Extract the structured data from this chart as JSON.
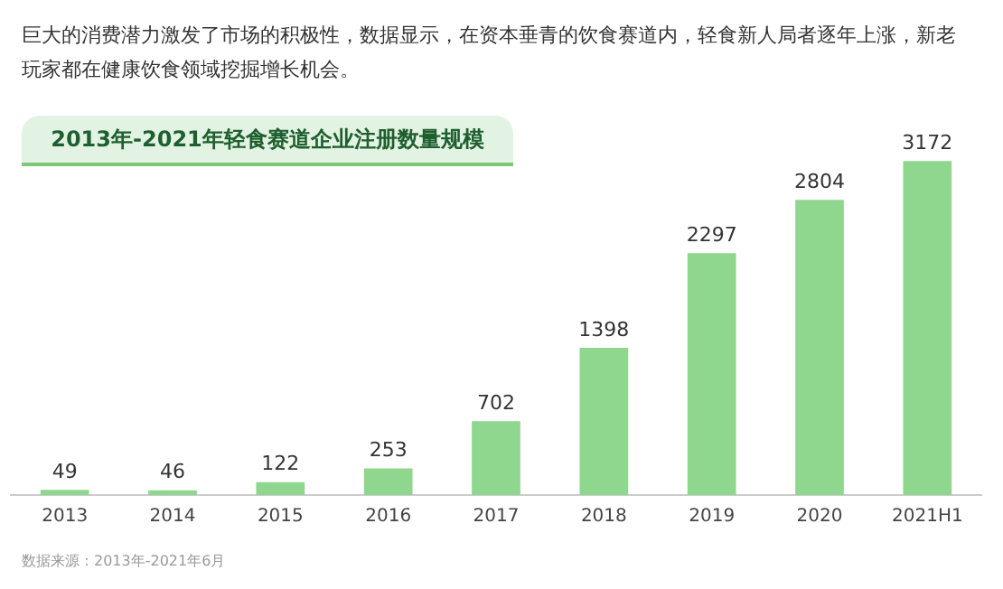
{
  "chart_data": {
    "type": "bar",
    "title": "2013年-2021年轻食赛道企业注册数量规模",
    "categories": [
      "2013",
      "2014",
      "2015",
      "2016",
      "2017",
      "2018",
      "2019",
      "2020",
      "2021H1"
    ],
    "values": [
      49,
      46,
      122,
      253,
      702,
      1398,
      2297,
      2804,
      3172
    ],
    "color": "#8fd68f",
    "data_labels": true,
    "grid": false,
    "legend": false,
    "annotations": [
      "巨大的消费潜力激发了市场的积极性，数据显示，在资本垂青的饮食赛道内，轻食新人局者逐年上涨，新老玩家都在健康饮食领域挖掘增长机会。",
      "数据来源：2013年-2021年6月"
    ]
  }
}
